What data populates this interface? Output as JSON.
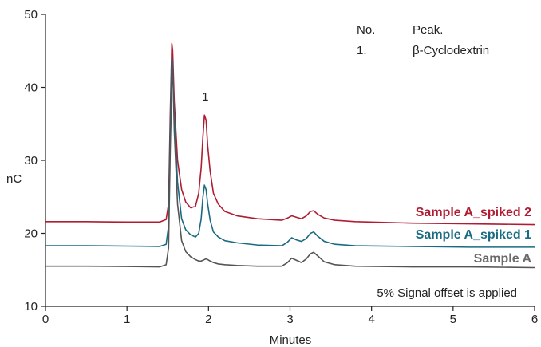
{
  "chart_data": {
    "type": "line",
    "xlabel": "Minutes",
    "ylabel": "nC",
    "xlim": [
      0,
      6
    ],
    "ylim": [
      10,
      50
    ],
    "x_ticks": [
      "0",
      "1",
      "2",
      "3",
      "4",
      "5",
      "6"
    ],
    "y_ticks": [
      "10",
      "20",
      "30",
      "40",
      "50"
    ],
    "grid": false,
    "legend": {
      "header": [
        "No.",
        "Peak."
      ],
      "rows": [
        [
          "1.",
          "β-Cyclodextrin"
        ]
      ],
      "position": "top-right"
    },
    "annotations": [
      {
        "text": "1",
        "x": 1.96,
        "y": 38.2
      },
      {
        "text": "5% Signal offset is applied"
      }
    ],
    "series": [
      {
        "name": "Sample A_spiked 2",
        "color": "#b01c32",
        "x": [
          0,
          0.5,
          1.0,
          1.4,
          1.48,
          1.51,
          1.53,
          1.55,
          1.56,
          1.58,
          1.62,
          1.67,
          1.72,
          1.78,
          1.84,
          1.88,
          1.91,
          1.93,
          1.95,
          1.97,
          1.99,
          2.02,
          2.06,
          2.12,
          2.2,
          2.35,
          2.6,
          2.9,
          2.97,
          3.02,
          3.08,
          3.14,
          3.2,
          3.25,
          3.29,
          3.34,
          3.42,
          3.55,
          3.8,
          4.5,
          5.2,
          6.0
        ],
        "y": [
          21.6,
          21.6,
          21.55,
          21.55,
          21.9,
          24.0,
          36.0,
          46.0,
          45.0,
          38.0,
          30.0,
          26.0,
          24.3,
          23.5,
          23.7,
          25.5,
          29.0,
          33.0,
          36.2,
          35.5,
          32.0,
          28.5,
          25.5,
          24.0,
          23.0,
          22.4,
          22.0,
          21.8,
          22.1,
          22.4,
          22.2,
          22.0,
          22.4,
          23.0,
          23.1,
          22.6,
          22.1,
          21.8,
          21.6,
          21.4,
          21.3,
          21.2
        ]
      },
      {
        "name": "Sample A_spiked 1",
        "color": "#1a6b82",
        "x": [
          0,
          0.5,
          1.0,
          1.4,
          1.48,
          1.51,
          1.53,
          1.55,
          1.56,
          1.58,
          1.62,
          1.67,
          1.72,
          1.78,
          1.84,
          1.88,
          1.91,
          1.93,
          1.95,
          1.97,
          1.99,
          2.02,
          2.06,
          2.12,
          2.2,
          2.35,
          2.6,
          2.9,
          2.97,
          3.02,
          3.08,
          3.14,
          3.2,
          3.25,
          3.29,
          3.34,
          3.42,
          3.55,
          3.8,
          4.5,
          5.2,
          6.0
        ],
        "y": [
          18.3,
          18.3,
          18.25,
          18.2,
          18.5,
          21.0,
          34.0,
          44.0,
          43.0,
          36.0,
          27.0,
          22.0,
          20.5,
          19.8,
          19.5,
          20.0,
          22.0,
          24.8,
          26.6,
          26.0,
          24.0,
          21.8,
          20.2,
          19.5,
          19.0,
          18.7,
          18.4,
          18.3,
          18.8,
          19.4,
          19.1,
          18.9,
          19.3,
          20.0,
          20.2,
          19.6,
          18.9,
          18.5,
          18.3,
          18.2,
          18.1,
          18.1
        ]
      },
      {
        "name": "Sample A",
        "color": "#555555",
        "x": [
          0,
          0.5,
          1.0,
          1.4,
          1.48,
          1.51,
          1.53,
          1.55,
          1.56,
          1.58,
          1.62,
          1.67,
          1.72,
          1.78,
          1.84,
          1.88,
          1.91,
          1.93,
          1.95,
          1.97,
          1.99,
          2.02,
          2.06,
          2.12,
          2.2,
          2.35,
          2.6,
          2.9,
          2.97,
          3.02,
          3.08,
          3.14,
          3.2,
          3.25,
          3.29,
          3.34,
          3.42,
          3.55,
          3.8,
          4.5,
          5.2,
          6.0
        ],
        "y": [
          15.5,
          15.5,
          15.45,
          15.4,
          15.7,
          18.0,
          31.0,
          40.5,
          43.0,
          34.0,
          24.0,
          19.0,
          17.5,
          16.8,
          16.4,
          16.2,
          16.2,
          16.3,
          16.4,
          16.5,
          16.4,
          16.2,
          16.0,
          15.8,
          15.7,
          15.6,
          15.5,
          15.5,
          16.0,
          16.6,
          16.3,
          16.0,
          16.5,
          17.2,
          17.4,
          16.9,
          16.1,
          15.7,
          15.5,
          15.4,
          15.4,
          15.3
        ]
      }
    ]
  }
}
